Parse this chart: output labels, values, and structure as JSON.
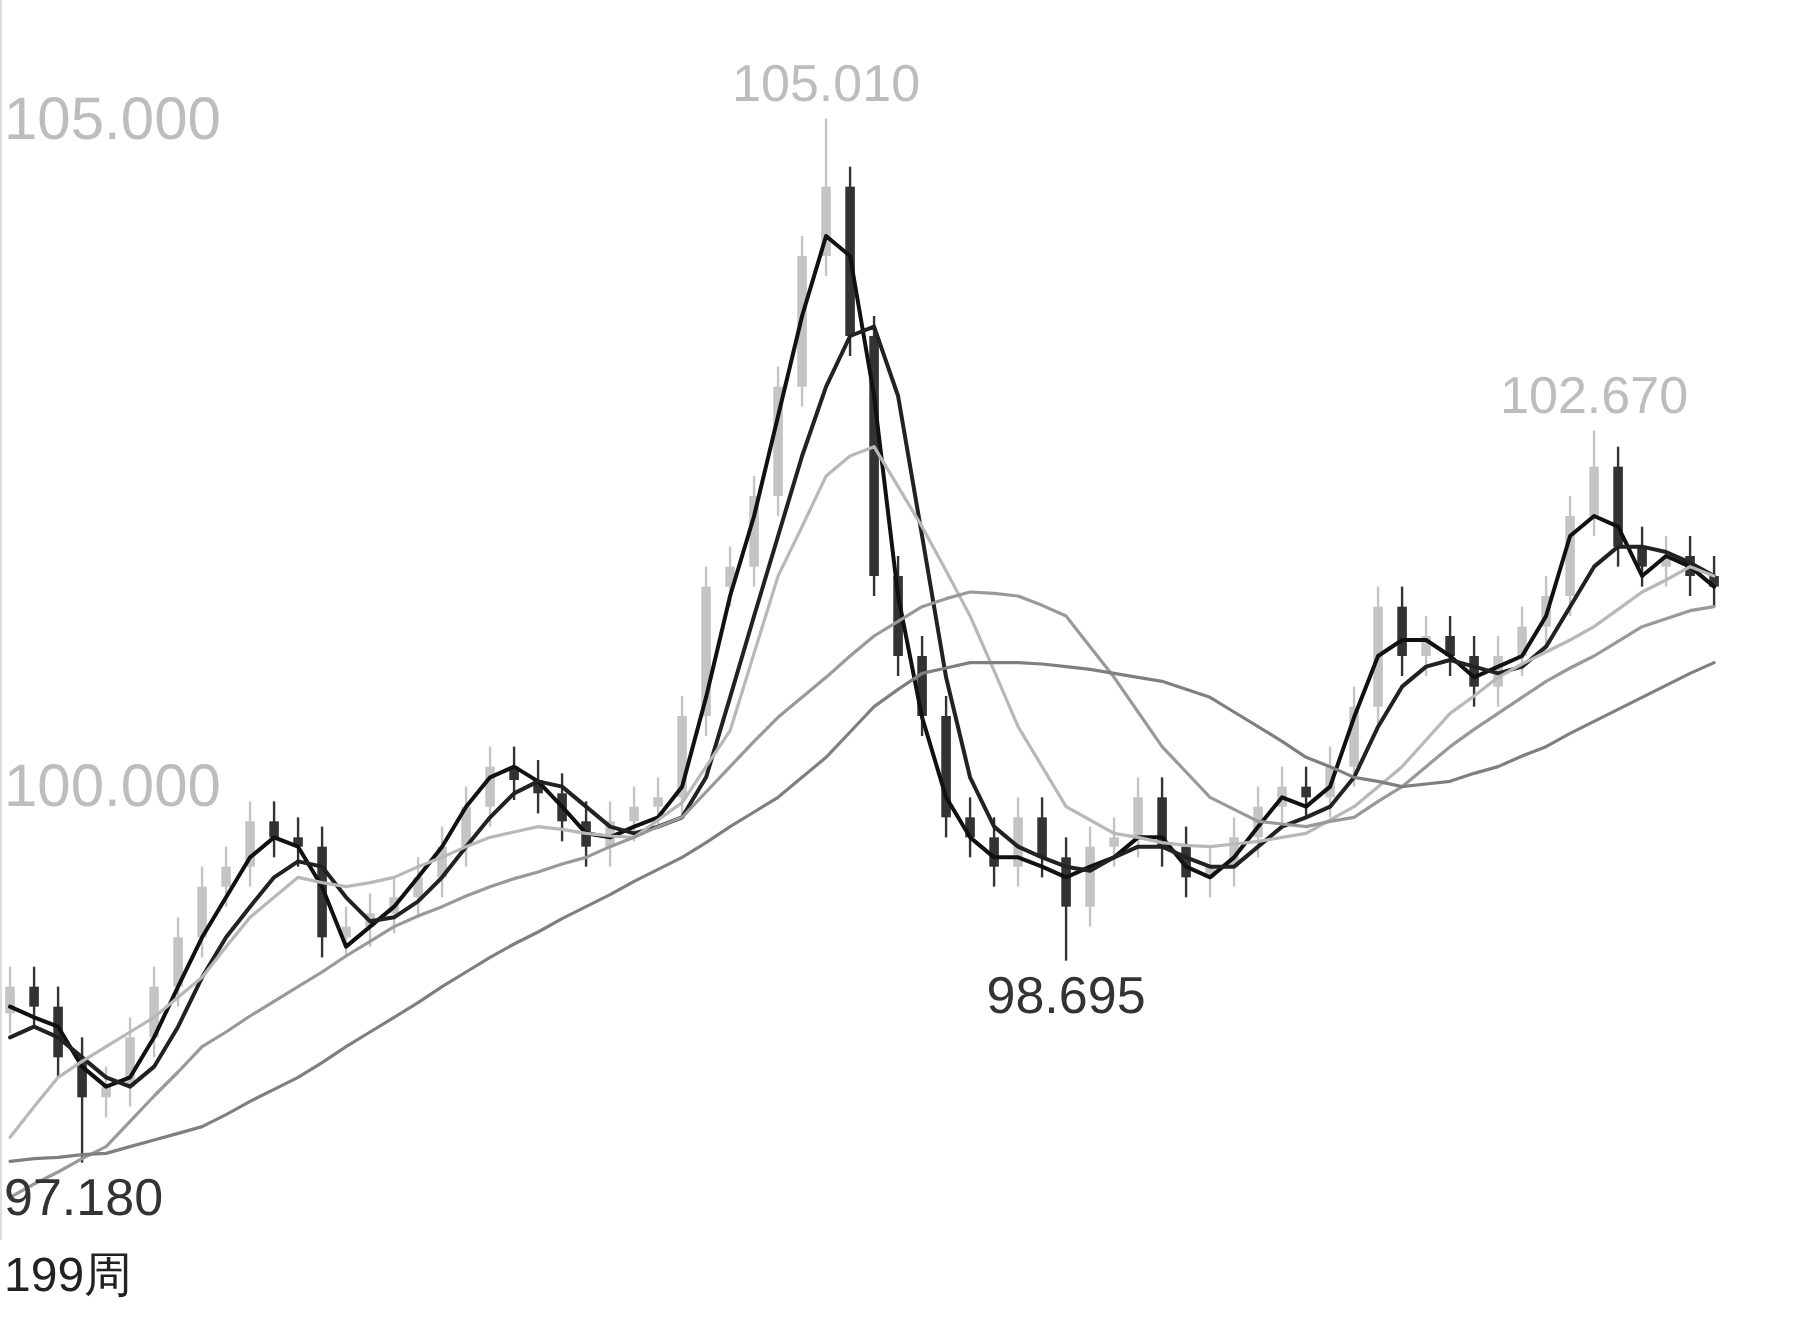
{
  "chart_data": {
    "type": "candlestick",
    "categories": [
      null,
      null,
      null,
      null,
      null,
      null,
      null,
      null,
      null,
      null,
      null,
      null,
      null,
      null,
      null,
      null,
      null,
      null,
      null,
      null,
      null,
      null,
      null,
      null,
      null,
      null,
      null,
      null,
      null,
      null,
      null,
      null,
      null,
      null,
      null,
      null,
      null,
      null,
      null,
      null,
      null,
      null,
      null,
      null,
      null,
      null,
      null,
      null,
      null,
      null,
      null,
      null,
      null,
      null,
      null,
      null,
      null,
      null,
      null,
      null,
      null,
      null,
      null,
      null,
      null,
      null,
      null,
      null,
      null,
      null,
      null,
      null
    ],
    "ohlc": [
      [
        98.3,
        98.65,
        98.15,
        98.5
      ],
      [
        98.5,
        98.65,
        98.2,
        98.35
      ],
      [
        98.35,
        98.5,
        97.82,
        97.97
      ],
      [
        97.97,
        98.12,
        97.18,
        97.67
      ],
      [
        97.67,
        97.9,
        97.52,
        97.75
      ],
      [
        97.75,
        98.27,
        97.6,
        98.12
      ],
      [
        98.12,
        98.65,
        97.97,
        98.5
      ],
      [
        98.5,
        99.02,
        98.35,
        98.87
      ],
      [
        98.87,
        99.4,
        98.72,
        99.25
      ],
      [
        99.25,
        99.55,
        99.1,
        99.4
      ],
      [
        99.4,
        99.89,
        99.25,
        99.74
      ],
      [
        99.74,
        99.89,
        99.47,
        99.62
      ],
      [
        99.62,
        99.77,
        99.4,
        99.55
      ],
      [
        99.55,
        99.7,
        98.72,
        98.87
      ],
      [
        98.87,
        99.1,
        98.72,
        98.95
      ],
      [
        98.95,
        99.2,
        98.8,
        99.05
      ],
      [
        99.05,
        99.32,
        98.9,
        99.17
      ],
      [
        99.17,
        99.47,
        99.02,
        99.32
      ],
      [
        99.32,
        99.7,
        99.17,
        99.55
      ],
      [
        99.55,
        100.0,
        99.4,
        99.85
      ],
      [
        99.85,
        100.3,
        99.7,
        100.15
      ],
      [
        100.15,
        100.3,
        99.9,
        100.05
      ],
      [
        100.05,
        100.2,
        99.8,
        99.95
      ],
      [
        99.95,
        100.1,
        99.59,
        99.74
      ],
      [
        99.74,
        99.89,
        99.4,
        99.55
      ],
      [
        99.55,
        99.89,
        99.4,
        99.74
      ],
      [
        99.74,
        100.0,
        99.59,
        99.85
      ],
      [
        99.85,
        100.07,
        99.7,
        99.92
      ],
      [
        99.92,
        100.68,
        99.77,
        100.53
      ],
      [
        100.53,
        101.65,
        100.38,
        101.5
      ],
      [
        101.5,
        101.8,
        101.35,
        101.65
      ],
      [
        101.65,
        102.33,
        101.5,
        102.18
      ],
      [
        102.18,
        103.15,
        102.03,
        103.0
      ],
      [
        103.0,
        104.13,
        102.85,
        103.98
      ],
      [
        103.98,
        105.01,
        103.83,
        104.5
      ],
      [
        104.5,
        104.65,
        103.23,
        103.38
      ],
      [
        103.38,
        103.53,
        101.43,
        101.58
      ],
      [
        101.58,
        101.73,
        100.83,
        100.98
      ],
      [
        100.98,
        101.13,
        100.38,
        100.53
      ],
      [
        100.53,
        100.68,
        99.62,
        99.77
      ],
      [
        99.77,
        99.92,
        99.47,
        99.62
      ],
      [
        99.62,
        99.77,
        99.25,
        99.4
      ],
      [
        99.4,
        99.92,
        99.25,
        99.77
      ],
      [
        99.77,
        99.92,
        99.32,
        99.47
      ],
      [
        99.47,
        99.62,
        98.695,
        99.1
      ],
      [
        99.1,
        99.7,
        98.95,
        99.55
      ],
      [
        99.55,
        99.77,
        99.4,
        99.62
      ],
      [
        99.62,
        100.07,
        99.47,
        99.92
      ],
      [
        99.92,
        100.07,
        99.4,
        99.55
      ],
      [
        99.55,
        99.7,
        99.17,
        99.32
      ],
      [
        99.32,
        99.55,
        99.17,
        99.4
      ],
      [
        99.4,
        99.77,
        99.25,
        99.62
      ],
      [
        99.62,
        100.0,
        99.47,
        99.85
      ],
      [
        99.85,
        100.15,
        99.7,
        100.0
      ],
      [
        100.0,
        100.15,
        99.77,
        99.92
      ],
      [
        99.92,
        100.3,
        99.77,
        100.15
      ],
      [
        100.15,
        100.75,
        100.0,
        100.6
      ],
      [
        100.6,
        101.5,
        100.45,
        101.35
      ],
      [
        101.35,
        101.5,
        100.83,
        100.98
      ],
      [
        100.98,
        101.28,
        100.83,
        101.13
      ],
      [
        101.13,
        101.28,
        100.83,
        100.98
      ],
      [
        100.98,
        101.13,
        100.6,
        100.75
      ],
      [
        100.75,
        101.13,
        100.6,
        100.98
      ],
      [
        100.98,
        101.35,
        100.83,
        101.2
      ],
      [
        101.2,
        101.58,
        101.05,
        101.43
      ],
      [
        101.43,
        102.18,
        101.28,
        102.03
      ],
      [
        102.03,
        102.67,
        101.88,
        102.4
      ],
      [
        102.4,
        102.55,
        101.65,
        101.8
      ],
      [
        101.8,
        101.95,
        101.5,
        101.65
      ],
      [
        101.65,
        101.88,
        101.5,
        101.73
      ],
      [
        101.73,
        101.88,
        101.43,
        101.58
      ],
      [
        101.58,
        101.73,
        101.35,
        101.5
      ]
    ],
    "colors": [
      "#c4c4c4",
      "#333333",
      "#333333",
      "#333333",
      "#c4c4c4",
      "#c4c4c4",
      "#c4c4c4",
      "#c4c4c4",
      "#c4c4c4",
      "#c4c4c4",
      "#c4c4c4",
      "#333333",
      "#333333",
      "#333333",
      "#c4c4c4",
      "#c4c4c4",
      "#c4c4c4",
      "#c4c4c4",
      "#c4c4c4",
      "#c4c4c4",
      "#c4c4c4",
      "#333333",
      "#333333",
      "#333333",
      "#333333",
      "#c4c4c4",
      "#c4c4c4",
      "#c4c4c4",
      "#c4c4c4",
      "#c4c4c4",
      "#c4c4c4",
      "#c4c4c4",
      "#c4c4c4",
      "#c4c4c4",
      "#c4c4c4",
      "#333333",
      "#333333",
      "#333333",
      "#333333",
      "#333333",
      "#333333",
      "#333333",
      "#c4c4c4",
      "#333333",
      "#333333",
      "#c4c4c4",
      "#c4c4c4",
      "#c4c4c4",
      "#333333",
      "#333333",
      "#c4c4c4",
      "#c4c4c4",
      "#c4c4c4",
      "#c4c4c4",
      "#333333",
      "#c4c4c4",
      "#c4c4c4",
      "#c4c4c4",
      "#333333",
      "#c4c4c4",
      "#333333",
      "#333333",
      "#c4c4c4",
      "#c4c4c4",
      "#c4c4c4",
      "#c4c4c4",
      "#c4c4c4",
      "#333333",
      "#333333",
      "#c4c4c4",
      "#333333",
      "#333333"
    ],
    "series": [
      {
        "type": "line",
        "color": "#111111",
        "values": [
          98.35,
          98.27,
          98.2,
          97.9,
          97.75,
          97.82,
          98.12,
          98.5,
          98.87,
          99.17,
          99.47,
          99.62,
          99.55,
          99.25,
          98.8,
          98.95,
          99.1,
          99.32,
          99.55,
          99.85,
          100.07,
          100.15,
          100.04,
          99.85,
          99.65,
          99.62,
          99.7,
          99.77,
          100.0,
          100.67,
          101.43,
          102.03,
          102.78,
          103.53,
          104.13,
          103.98,
          102.93,
          101.43,
          100.52,
          99.92,
          99.62,
          99.47,
          99.47,
          99.4,
          99.32,
          99.4,
          99.47,
          99.62,
          99.62,
          99.4,
          99.32,
          99.47,
          99.7,
          99.92,
          99.85,
          100.0,
          100.52,
          100.98,
          101.1,
          101.1,
          100.98,
          100.82,
          100.9,
          100.98,
          101.28,
          101.88,
          102.03,
          101.95,
          101.58,
          101.73,
          101.65,
          101.5
        ]
      },
      {
        "type": "line",
        "color": "#222222",
        "values": [
          98.12,
          98.2,
          98.12,
          97.97,
          97.82,
          97.75,
          97.9,
          98.2,
          98.57,
          98.87,
          99.1,
          99.32,
          99.44,
          99.4,
          99.17,
          98.99,
          99.02,
          99.14,
          99.32,
          99.55,
          99.77,
          99.95,
          100.04,
          100.0,
          99.85,
          99.7,
          99.65,
          99.7,
          99.77,
          100.07,
          100.67,
          101.28,
          101.88,
          102.48,
          103.0,
          103.38,
          103.45,
          102.93,
          101.88,
          100.82,
          100.07,
          99.7,
          99.55,
          99.47,
          99.4,
          99.37,
          99.47,
          99.55,
          99.55,
          99.47,
          99.4,
          99.4,
          99.55,
          99.7,
          99.77,
          99.85,
          100.07,
          100.45,
          100.75,
          100.9,
          100.95,
          100.9,
          100.85,
          100.9,
          101.05,
          101.35,
          101.65,
          101.8,
          101.8,
          101.76,
          101.68,
          101.58
        ]
      },
      {
        "type": "line",
        "color": "#b8b8b8",
        "values": [
          97.37,
          97.6,
          97.82,
          97.94,
          98.05,
          98.16,
          98.27,
          98.42,
          98.57,
          98.8,
          99.02,
          99.17,
          99.32,
          99.28,
          99.25,
          99.28,
          99.32,
          99.4,
          99.47,
          99.55,
          99.62,
          99.66,
          99.7,
          99.68,
          99.65,
          99.63,
          99.62,
          99.75,
          99.88,
          100.15,
          100.42,
          101.0,
          101.58,
          101.95,
          102.33,
          102.48,
          102.55,
          102.25,
          101.95,
          101.62,
          101.28,
          100.87,
          100.45,
          100.15,
          99.85,
          99.75,
          99.65,
          99.62,
          99.58,
          99.56,
          99.55,
          99.57,
          99.59,
          99.62,
          99.65,
          99.75,
          99.85,
          100.0,
          100.15,
          100.35,
          100.55,
          100.68,
          100.82,
          100.92,
          101.01,
          101.1,
          101.2,
          101.33,
          101.46,
          101.55,
          101.65,
          101.58
        ]
      },
      {
        "type": "line",
        "color": "#999999",
        "values": [
          96.92,
          97.02,
          97.11,
          97.21,
          97.3,
          97.49,
          97.68,
          97.86,
          98.05,
          98.16,
          98.28,
          98.39,
          98.5,
          98.61,
          98.73,
          98.84,
          98.95,
          99.03,
          99.1,
          99.18,
          99.25,
          99.31,
          99.36,
          99.42,
          99.47,
          99.55,
          99.62,
          99.7,
          99.77,
          99.96,
          100.15,
          100.34,
          100.52,
          100.67,
          100.82,
          100.98,
          101.13,
          101.24,
          101.35,
          101.41,
          101.46,
          101.45,
          101.43,
          101.36,
          101.28,
          101.05,
          100.82,
          100.56,
          100.3,
          100.11,
          99.92,
          99.83,
          99.74,
          99.72,
          99.7,
          99.74,
          99.77,
          99.89,
          100.0,
          100.15,
          100.3,
          100.43,
          100.55,
          100.67,
          100.79,
          100.89,
          100.98,
          101.09,
          101.2,
          101.26,
          101.32,
          101.35
        ]
      },
      {
        "type": "line",
        "color": "#7f7f7f",
        "values": [
          97.19,
          97.21,
          97.22,
          97.24,
          97.25,
          97.3,
          97.35,
          97.4,
          97.45,
          97.54,
          97.64,
          97.73,
          97.82,
          97.93,
          98.05,
          98.16,
          98.27,
          98.38,
          98.5,
          98.61,
          98.72,
          98.82,
          98.91,
          99.01,
          99.1,
          99.19,
          99.29,
          99.38,
          99.47,
          99.58,
          99.7,
          99.81,
          99.92,
          100.07,
          100.22,
          100.41,
          100.6,
          100.73,
          100.85,
          100.89,
          100.93,
          100.93,
          100.93,
          100.92,
          100.9,
          100.88,
          100.85,
          100.82,
          100.79,
          100.73,
          100.67,
          100.56,
          100.45,
          100.34,
          100.22,
          100.15,
          100.07,
          100.04,
          100.0,
          100.02,
          100.04,
          100.1,
          100.15,
          100.23,
          100.3,
          100.4,
          100.49,
          100.58,
          100.67,
          100.76,
          100.85,
          100.93
        ]
      }
    ],
    "ylim": [
      96.6,
      105.9
    ],
    "yticks": [
      {
        "value": 100,
        "label": "100.000"
      },
      {
        "value": 105,
        "label": "105.000"
      }
    ],
    "tick_labels": "y",
    "grid": false,
    "annotations": [
      {
        "text": "105.010",
        "y": 105.01
      },
      {
        "text": "102.670",
        "y": 102.67
      },
      {
        "text": "98.695",
        "y": 98.695
      },
      {
        "text": "97.180",
        "y": 97.18
      },
      "199周"
    ]
  }
}
